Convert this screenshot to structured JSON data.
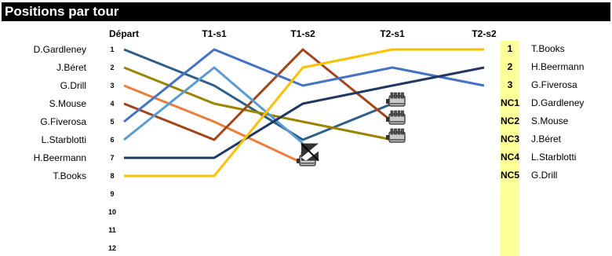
{
  "title": "Positions par tour",
  "columns": [
    "Départ",
    "T1-s1",
    "T1-s2",
    "T2-s1",
    "T2-s2"
  ],
  "start_names": [
    "D.Gardleney",
    "J.Béret",
    "G.Drill",
    "S.Mouse",
    "G.Fiverosa",
    "L.Starblotti",
    "H.Beermann",
    "T.Books"
  ],
  "chart_data": {
    "type": "line",
    "title": "Positions par tour",
    "categories": [
      "Départ",
      "T1-s1",
      "T1-s2",
      "T2-s1",
      "T2-s2"
    ],
    "y_ticks": [
      1,
      2,
      3,
      4,
      5,
      6,
      7,
      8,
      9,
      10,
      11,
      12
    ],
    "ylim": [
      1,
      12
    ],
    "y_inverted": true,
    "series": [
      {
        "name": "D.Gardleney",
        "color": "#2e5f8a",
        "values": [
          1,
          3,
          6,
          4,
          null
        ],
        "end": "engine"
      },
      {
        "name": "J.Béret",
        "color": "#9c8400",
        "values": [
          2,
          4,
          5,
          6,
          null
        ],
        "end": "engine"
      },
      {
        "name": "G.Drill",
        "color": "#f07c3c",
        "values": [
          3,
          5,
          7.3,
          null,
          null
        ],
        "end": "engine"
      },
      {
        "name": "S.Mouse",
        "color": "#a0461a",
        "values": [
          4,
          6,
          1,
          5,
          null
        ],
        "end": "engine"
      },
      {
        "name": "G.Fiverosa",
        "color": "#4472c4",
        "values": [
          5,
          1,
          3,
          2,
          3
        ],
        "end": null
      },
      {
        "name": "L.Starblotti",
        "color": "#5b9bd5",
        "values": [
          6,
          2,
          6.2,
          null,
          null
        ],
        "end": "crash"
      },
      {
        "name": "H.Beermann",
        "color": "#1f3864",
        "values": [
          7,
          7,
          4,
          3,
          2
        ],
        "end": null
      },
      {
        "name": "T.Books",
        "color": "#ffc000",
        "values": [
          8,
          8,
          2,
          1,
          1
        ],
        "end": null
      }
    ]
  },
  "results": [
    {
      "rank": "1",
      "name": "T.Books"
    },
    {
      "rank": "2",
      "name": "H.Beermann"
    },
    {
      "rank": "3",
      "name": "G.Fiverosa"
    },
    {
      "rank": "NC1",
      "name": "D.Gardleney"
    },
    {
      "rank": "NC2",
      "name": "S.Mouse"
    },
    {
      "rank": "NC3",
      "name": "J.Béret"
    },
    {
      "rank": "NC4",
      "name": "L.Starblotti"
    },
    {
      "rank": "NC5",
      "name": "G.Drill"
    }
  ],
  "highlight_color": "#ffff99"
}
